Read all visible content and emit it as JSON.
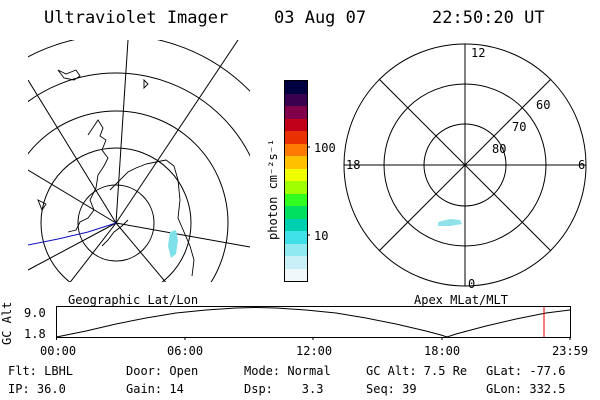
{
  "header": {
    "title": "Ultraviolet Imager",
    "date": "03 Aug 07",
    "time": "22:50:20 UT"
  },
  "colorbar": {
    "unit_label": "photon cm⁻²s⁻¹",
    "ticks": [
      "100",
      "10"
    ],
    "colors": [
      "#000040",
      "#3a0050",
      "#80004a",
      "#c00018",
      "#e83000",
      "#ff7a00",
      "#ffc000",
      "#f0ff00",
      "#a0ff00",
      "#30ff20",
      "#00e060",
      "#00d0b0",
      "#40e0e8",
      "#90e8f0",
      "#c8f0f6",
      "#f0f8fa"
    ]
  },
  "polar_plot": {
    "clock_labels": {
      "top": "12",
      "right": "6",
      "bottom": "0",
      "left": "18"
    },
    "lat_labels": [
      "60",
      "70",
      "80"
    ]
  },
  "map_label": "Geographic Lat/Lon",
  "polar_label": "Apex MLat/MLT",
  "altitude_plot": {
    "y_label": "GC Alt",
    "y_ticks": [
      "9.0",
      "1.8"
    ],
    "x_ticks": [
      "00:00",
      "06:00",
      "12:00",
      "18:00",
      "23:59"
    ],
    "marker_color": "#e00000"
  },
  "footer": {
    "row1": {
      "filter": "Flt: LBHL",
      "door": "Door: Open",
      "mode": "Mode: Normal",
      "gc_alt": "GC Alt: 7.5 Re",
      "glat": "GLat: -77.6"
    },
    "row2": {
      "ip": "IP: 36.0",
      "gain": "Gain: 14",
      "dsp": "Dsp:    3.3",
      "seq": "Seq: 39",
      "glon": "GLon: 332.5"
    }
  }
}
